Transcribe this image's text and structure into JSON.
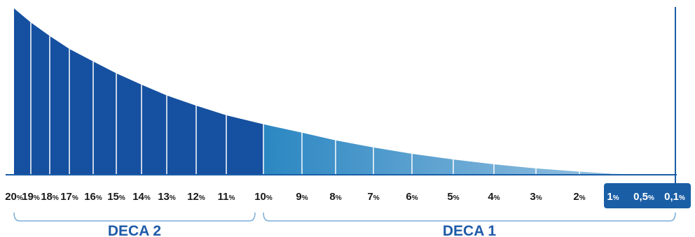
{
  "chart_data": {
    "type": "area",
    "title": "",
    "xlabel": "",
    "ylabel": "",
    "categories": [
      "20",
      "19",
      "18",
      "17",
      "16",
      "15",
      "14",
      "13",
      "12",
      "11",
      "10",
      "9",
      "8",
      "7",
      "6",
      "5",
      "4",
      "3",
      "2",
      "1",
      "0,5",
      "0,1"
    ],
    "unit_suffix": "%",
    "values": [
      20,
      19,
      18,
      17,
      16,
      15,
      14,
      13,
      12,
      11,
      10,
      9,
      8,
      7,
      6,
      5,
      4,
      3,
      2,
      1,
      0.5,
      0.1
    ],
    "grid": false,
    "groups": [
      {
        "name": "DECA 2",
        "from": "20",
        "to": "10",
        "color": "#1650a0"
      },
      {
        "name": "DECA 1",
        "from": "10",
        "to": "0,1"
      }
    ],
    "highlight": {
      "from": "1",
      "to": "0,1",
      "color": "#1a5ea6"
    },
    "colors": {
      "deca2_fill": "#1650a0",
      "deca1_fill_start": "#2b87c2",
      "deca1_fill_end": "#a9cbe6",
      "divider": "#ffffff",
      "baseline": "#1a5ea6",
      "bracket": "#7aaed8",
      "label": "#1e5aa8",
      "highlight_box": "#1a5ea6"
    }
  }
}
